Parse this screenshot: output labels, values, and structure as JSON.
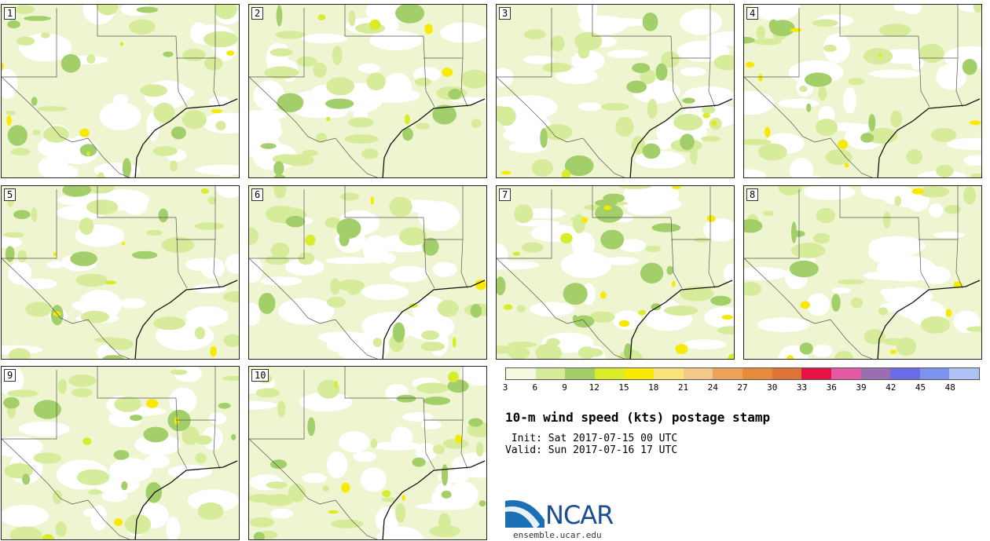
{
  "panels": [
    {
      "label": "1"
    },
    {
      "label": "2"
    },
    {
      "label": "3"
    },
    {
      "label": "4"
    },
    {
      "label": "5"
    },
    {
      "label": "6"
    },
    {
      "label": "7"
    },
    {
      "label": "8"
    },
    {
      "label": "9"
    },
    {
      "label": "10"
    }
  ],
  "colorbar": {
    "colors": [
      "#f4f8de",
      "#d6ec9a",
      "#a3cf6a",
      "#d9ec2a",
      "#f7ea00",
      "#f9e37a",
      "#f1c98a",
      "#eba358",
      "#e78a3c",
      "#e07438",
      "#e81144",
      "#e25ba2",
      "#9a6fb0",
      "#6b6be6",
      "#7e93ee",
      "#aec3f4"
    ],
    "ticks": [
      "3",
      "6",
      "9",
      "12",
      "15",
      "18",
      "21",
      "24",
      "27",
      "30",
      "33",
      "36",
      "39",
      "42",
      "45",
      "48"
    ]
  },
  "title": "10-m wind speed (kts) postage stamp",
  "init_text": " Init: Sat 2017-07-15 00 UTC",
  "valid_text": "Valid: Sun 2017-07-16 17 UTC",
  "logo": {
    "text": "NCAR",
    "site": "ensemble.ucar.edu"
  }
}
